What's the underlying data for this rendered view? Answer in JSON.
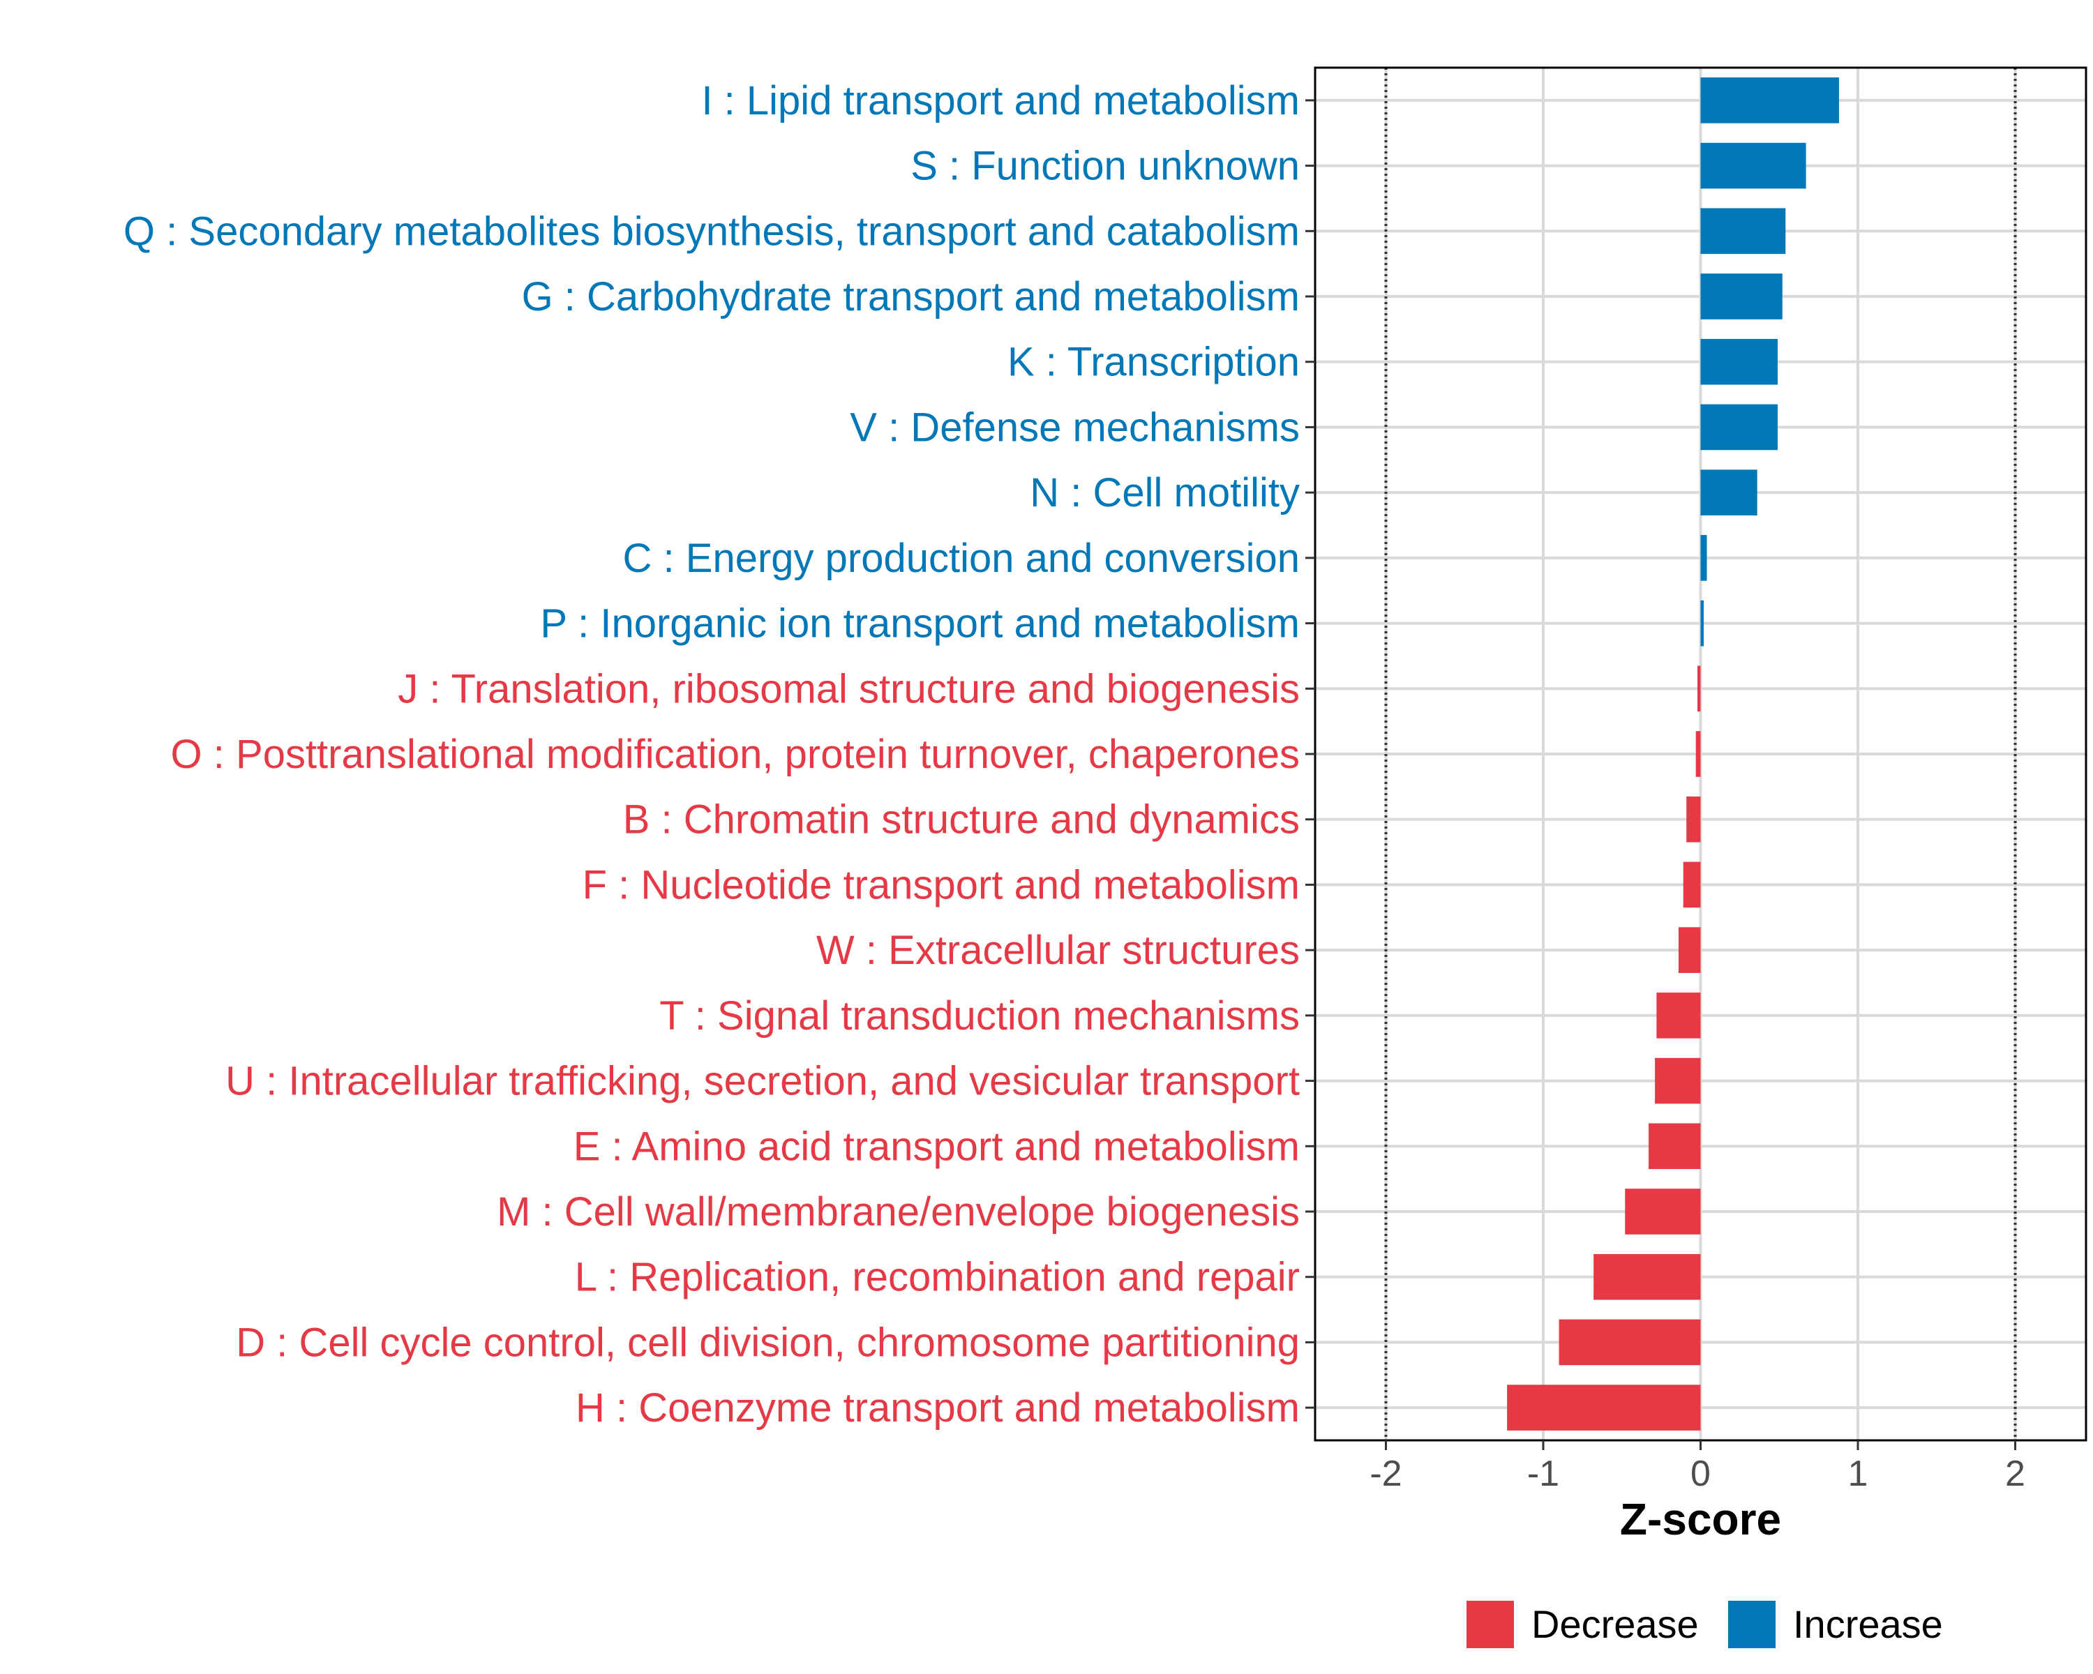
{
  "chart_data": {
    "type": "bar",
    "orientation": "horizontal",
    "title": "",
    "xlabel": "Z-score",
    "ylabel": "",
    "xlim": [
      -2.45,
      2.45
    ],
    "xticks": [
      -2,
      -1,
      0,
      1,
      2
    ],
    "xtick_labels": [
      "-2",
      "-1",
      "0",
      "1",
      "2"
    ],
    "reference_lines": [
      -2,
      2
    ],
    "grid": true,
    "legend_position": "bottom",
    "colors": {
      "Decrease": "#E63946",
      "Increase": "#0077B6"
    },
    "series_names": [
      "Decrease",
      "Increase"
    ],
    "categories": [
      "I : Lipid transport and metabolism",
      "S : Function unknown",
      "Q : Secondary metabolites biosynthesis, transport and catabolism",
      "G : Carbohydrate transport and metabolism",
      "K : Transcription",
      "V : Defense mechanisms",
      "N : Cell motility",
      "C : Energy production and conversion",
      "P : Inorganic ion transport and metabolism",
      "J : Translation, ribosomal structure and biogenesis",
      "O : Posttranslational modification, protein turnover, chaperones",
      "B : Chromatin structure and dynamics",
      "F : Nucleotide transport and metabolism",
      "W : Extracellular structures",
      "T : Signal transduction mechanisms",
      "U : Intracellular trafficking, secretion, and vesicular transport",
      "E : Amino acid transport and metabolism",
      "M : Cell wall/membrane/envelope biogenesis",
      "L : Replication, recombination and repair",
      "D : Cell cycle control, cell division, chromosome partitioning",
      "H : Coenzyme transport and metabolism"
    ],
    "values": [
      0.88,
      0.67,
      0.54,
      0.52,
      0.49,
      0.49,
      0.36,
      0.04,
      0.02,
      -0.02,
      -0.03,
      -0.09,
      -0.11,
      -0.14,
      -0.28,
      -0.29,
      -0.33,
      -0.48,
      -0.68,
      -0.9,
      -1.23
    ],
    "groups": [
      "Increase",
      "Increase",
      "Increase",
      "Increase",
      "Increase",
      "Increase",
      "Increase",
      "Increase",
      "Increase",
      "Decrease",
      "Decrease",
      "Decrease",
      "Decrease",
      "Decrease",
      "Decrease",
      "Decrease",
      "Decrease",
      "Decrease",
      "Decrease",
      "Decrease",
      "Decrease"
    ]
  }
}
